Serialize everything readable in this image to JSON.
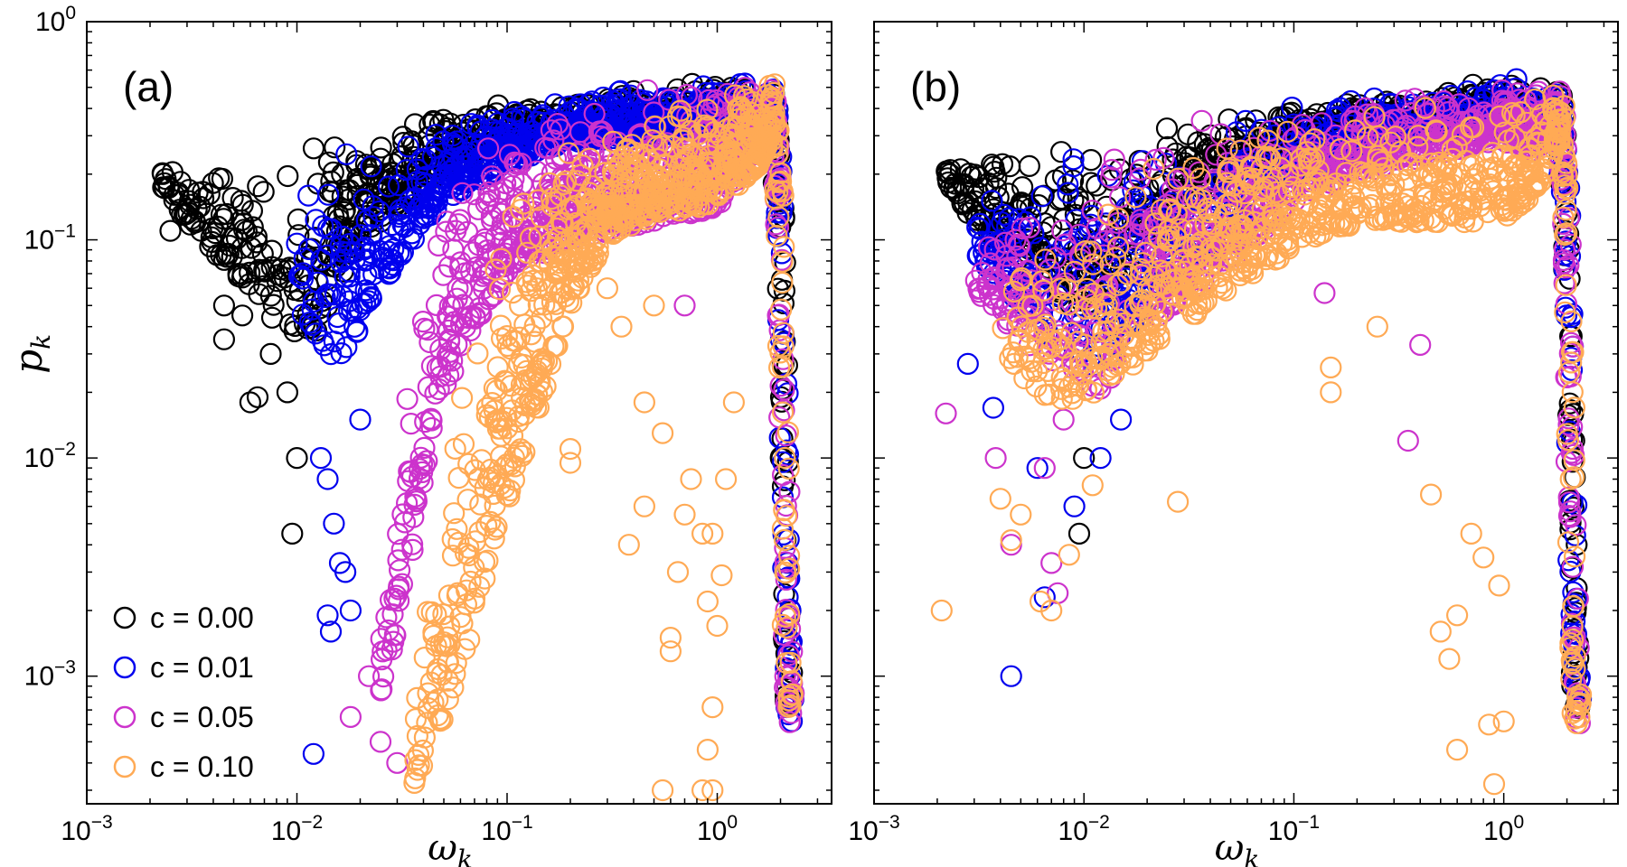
{
  "chart_data": [
    {
      "type": "scatter",
      "panel_label": "(a)",
      "xlabel": "ω",
      "xlabel_sub": "k",
      "ylabel": "p",
      "ylabel_sub": "k",
      "xscale": "log",
      "yscale": "log",
      "xlim": [
        0.001,
        3.5
      ],
      "ylim": [
        0.00026,
        1
      ],
      "x_ticks": [
        {
          "value": 0.001,
          "base": "10",
          "exp": "−3"
        },
        {
          "value": 0.01,
          "base": "10",
          "exp": "−2"
        },
        {
          "value": 0.1,
          "base": "10",
          "exp": "−1"
        },
        {
          "value": 1,
          "base": "10",
          "exp": "0"
        }
      ],
      "y_ticks": [
        {
          "value": 0.001,
          "base": "10",
          "exp": "−3"
        },
        {
          "value": 0.01,
          "base": "10",
          "exp": "−2"
        },
        {
          "value": 0.1,
          "base": "10",
          "exp": "−1"
        },
        {
          "value": 1,
          "base": "10",
          "exp": "0"
        }
      ],
      "show_y_tick_labels": true,
      "legend": {
        "position": "bottom-left",
        "entries": [
          "c = 0.00",
          "c = 0.01",
          "c = 0.05",
          "c = 0.10"
        ]
      },
      "series": [
        {
          "name": "c = 0.00",
          "color": "#000000",
          "band": {
            "x": [
              0.0022,
              0.003,
              0.005,
              0.008,
              0.012,
              0.02,
              0.05,
              0.1,
              0.2,
              0.5,
              1.0,
              1.3,
              1.6,
              1.8
            ],
            "upper": [
              0.22,
              0.24,
              0.26,
              0.28,
              0.31,
              0.34,
              0.39,
              0.42,
              0.46,
              0.5,
              0.56,
              0.57,
              0.52,
              0.45
            ],
            "lower": [
              0.18,
              0.12,
              0.07,
              0.04,
              0.035,
              0.1,
              0.2,
              0.28,
              0.3,
              0.32,
              0.35,
              0.3,
              0.3,
              0.3
            ]
          },
          "outliers": [
            [
              0.0023,
              0.2
            ],
            [
              0.0025,
              0.11
            ],
            [
              0.0035,
              0.11
            ],
            [
              0.0045,
              0.05
            ],
            [
              0.0045,
              0.035
            ],
            [
              0.006,
              0.018
            ],
            [
              0.0065,
              0.019
            ],
            [
              0.009,
              0.02
            ],
            [
              0.01,
              0.01
            ],
            [
              0.0095,
              0.0045
            ],
            [
              0.0075,
              0.03
            ],
            [
              0.0055,
              0.045
            ]
          ]
        },
        {
          "name": "c = 0.01",
          "color": "#0000ee",
          "band": {
            "x": [
              0.01,
              0.015,
              0.02,
              0.03,
              0.05,
              0.1,
              0.2,
              0.5,
              1.0,
              1.3,
              1.6,
              1.8
            ],
            "upper": [
              0.2,
              0.24,
              0.28,
              0.32,
              0.37,
              0.42,
              0.47,
              0.52,
              0.56,
              0.57,
              0.52,
              0.45
            ],
            "lower": [
              0.05,
              0.025,
              0.04,
              0.08,
              0.15,
              0.22,
              0.28,
              0.3,
              0.32,
              0.3,
              0.3,
              0.3
            ]
          },
          "outliers": [
            [
              0.013,
              0.01
            ],
            [
              0.014,
              0.008
            ],
            [
              0.015,
              0.005
            ],
            [
              0.016,
              0.0033
            ],
            [
              0.017,
              0.003
            ],
            [
              0.014,
              0.0019
            ],
            [
              0.0145,
              0.0016
            ],
            [
              0.012,
              0.00044
            ],
            [
              0.018,
              0.002
            ],
            [
              0.02,
              0.015
            ]
          ]
        },
        {
          "name": "c = 0.05",
          "color": "#cc33cc",
          "band": {
            "x": [
              0.025,
              0.03,
              0.035,
              0.04,
              0.05,
              0.07,
              0.1,
              0.2,
              0.5,
              1.0,
              1.3,
              1.6,
              1.8
            ],
            "upper": [
              0.0022,
              0.008,
              0.04,
              0.12,
              0.2,
              0.27,
              0.33,
              0.41,
              0.5,
              0.55,
              0.56,
              0.52,
              0.45
            ],
            "lower": [
              0.0008,
              0.0015,
              0.003,
              0.008,
              0.02,
              0.04,
              0.07,
              0.1,
              0.12,
              0.14,
              0.2,
              0.25,
              0.3
            ]
          },
          "outliers": [
            [
              0.018,
              0.00065
            ],
            [
              0.022,
              0.001
            ],
            [
              0.025,
              0.0005
            ],
            [
              0.03,
              0.0004
            ],
            [
              0.4,
              0.22
            ],
            [
              0.7,
              0.05
            ]
          ]
        },
        {
          "name": "c = 0.10",
          "color": "#ffaa55",
          "band": {
            "x": [
              0.035,
              0.04,
              0.05,
              0.06,
              0.08,
              0.1,
              0.15,
              0.2,
              0.3,
              0.5,
              0.8,
              1.0,
              1.3,
              1.6,
              1.8
            ],
            "upper": [
              0.0008,
              0.002,
              0.01,
              0.03,
              0.1,
              0.18,
              0.25,
              0.3,
              0.36,
              0.42,
              0.47,
              0.5,
              0.52,
              0.5,
              0.45
            ],
            "lower": [
              0.0003,
              0.0004,
              0.0006,
              0.001,
              0.003,
              0.006,
              0.02,
              0.05,
              0.1,
              0.13,
              0.14,
              0.15,
              0.18,
              0.22,
              0.3
            ]
          },
          "outliers": [
            [
              0.2,
              0.011
            ],
            [
              0.2,
              0.0095
            ],
            [
              0.3,
              0.06
            ],
            [
              0.25,
              0.075
            ],
            [
              0.35,
              0.04
            ],
            [
              0.45,
              0.018
            ],
            [
              0.5,
              0.05
            ],
            [
              0.55,
              0.013
            ],
            [
              0.6,
              0.0015
            ],
            [
              0.65,
              0.003
            ],
            [
              0.7,
              0.0055
            ],
            [
              0.75,
              0.008
            ],
            [
              0.85,
              0.0045
            ],
            [
              0.9,
              0.0022
            ],
            [
              0.95,
              0.0045
            ],
            [
              0.9,
              0.00046
            ],
            [
              0.95,
              0.00072
            ],
            [
              1.0,
              0.0017
            ],
            [
              1.05,
              0.0029
            ],
            [
              0.6,
              0.0013
            ],
            [
              0.85,
              0.0003
            ],
            [
              0.95,
              0.0003
            ],
            [
              0.55,
              0.0003
            ],
            [
              1.1,
              0.008
            ],
            [
              1.2,
              0.018
            ],
            [
              0.38,
              0.004
            ],
            [
              0.45,
              0.006
            ]
          ]
        }
      ],
      "tail": {
        "x": [
          1.8,
          1.9,
          2.0,
          2.05,
          2.1,
          2.15,
          2.2,
          2.25
        ],
        "y": [
          0.45,
          0.3,
          0.12,
          0.03,
          0.008,
          0.002,
          0.0009,
          0.00068
        ]
      }
    },
    {
      "type": "scatter",
      "panel_label": "(b)",
      "xlabel": "ω",
      "xlabel_sub": "k",
      "ylabel": "",
      "ylabel_sub": "",
      "xscale": "log",
      "yscale": "log",
      "xlim": [
        0.001,
        3.5
      ],
      "ylim": [
        0.00026,
        1
      ],
      "x_ticks": [
        {
          "value": 0.001,
          "base": "10",
          "exp": "−3"
        },
        {
          "value": 0.01,
          "base": "10",
          "exp": "−2"
        },
        {
          "value": 0.1,
          "base": "10",
          "exp": "−1"
        },
        {
          "value": 1,
          "base": "10",
          "exp": "0"
        }
      ],
      "y_ticks": [
        {
          "value": 0.001,
          "base": "10",
          "exp": "−3"
        },
        {
          "value": 0.01,
          "base": "10",
          "exp": "−2"
        },
        {
          "value": 0.1,
          "base": "10",
          "exp": "−1"
        },
        {
          "value": 1,
          "base": "10",
          "exp": "0"
        }
      ],
      "show_y_tick_labels": false,
      "series": [
        {
          "name": "c = 0.00",
          "color": "#000000",
          "band": {
            "x": [
              0.0022,
              0.003,
              0.005,
              0.008,
              0.012,
              0.02,
              0.05,
              0.1,
              0.2,
              0.5,
              1.0,
              1.3,
              1.6,
              1.8
            ],
            "upper": [
              0.22,
              0.24,
              0.26,
              0.28,
              0.31,
              0.34,
              0.39,
              0.42,
              0.46,
              0.5,
              0.56,
              0.57,
              0.52,
              0.45
            ],
            "lower": [
              0.18,
              0.12,
              0.08,
              0.05,
              0.05,
              0.1,
              0.2,
              0.28,
              0.3,
              0.32,
              0.35,
              0.3,
              0.3,
              0.3
            ]
          },
          "outliers": [
            [
              0.0023,
              0.2
            ],
            [
              0.0035,
              0.11
            ],
            [
              0.0095,
              0.0045
            ],
            [
              0.01,
              0.01
            ]
          ]
        },
        {
          "name": "c = 0.01",
          "color": "#0000ee",
          "band": {
            "x": [
              0.003,
              0.005,
              0.008,
              0.012,
              0.02,
              0.05,
              0.1,
              0.2,
              0.5,
              1.0,
              1.3,
              1.6,
              1.8
            ],
            "upper": [
              0.15,
              0.2,
              0.25,
              0.3,
              0.34,
              0.39,
              0.42,
              0.46,
              0.5,
              0.56,
              0.57,
              0.52,
              0.45
            ],
            "lower": [
              0.08,
              0.05,
              0.03,
              0.025,
              0.05,
              0.1,
              0.2,
              0.25,
              0.3,
              0.33,
              0.3,
              0.3,
              0.3
            ]
          },
          "outliers": [
            [
              0.0028,
              0.027
            ],
            [
              0.0037,
              0.017
            ],
            [
              0.0045,
              0.001
            ],
            [
              0.006,
              0.009
            ],
            [
              0.0065,
              0.0023
            ],
            [
              0.009,
              0.006
            ],
            [
              0.012,
              0.01
            ],
            [
              0.015,
              0.015
            ]
          ]
        },
        {
          "name": "c = 0.05",
          "color": "#cc33cc",
          "band": {
            "x": [
              0.003,
              0.005,
              0.008,
              0.012,
              0.02,
              0.05,
              0.1,
              0.2,
              0.5,
              1.0,
              1.3,
              1.6,
              1.8
            ],
            "upper": [
              0.1,
              0.17,
              0.22,
              0.28,
              0.32,
              0.38,
              0.41,
              0.45,
              0.49,
              0.55,
              0.56,
              0.52,
              0.45
            ],
            "lower": [
              0.06,
              0.035,
              0.025,
              0.02,
              0.04,
              0.08,
              0.15,
              0.2,
              0.25,
              0.28,
              0.25,
              0.28,
              0.3
            ]
          },
          "outliers": [
            [
              0.0022,
              0.016
            ],
            [
              0.0032,
              0.06
            ],
            [
              0.0038,
              0.01
            ],
            [
              0.0045,
              0.004
            ],
            [
              0.0065,
              0.009
            ],
            [
              0.007,
              0.0033
            ],
            [
              0.0075,
              0.0024
            ],
            [
              0.008,
              0.015
            ],
            [
              0.14,
              0.057
            ],
            [
              0.35,
              0.012
            ],
            [
              0.4,
              0.033
            ]
          ]
        },
        {
          "name": "c = 0.10",
          "color": "#ffaa55",
          "band": {
            "x": [
              0.004,
              0.006,
              0.008,
              0.012,
              0.02,
              0.05,
              0.1,
              0.2,
              0.5,
              1.0,
              1.3,
              1.6,
              1.8
            ],
            "upper": [
              0.07,
              0.12,
              0.16,
              0.2,
              0.26,
              0.32,
              0.36,
              0.4,
              0.44,
              0.48,
              0.5,
              0.48,
              0.44
            ],
            "lower": [
              0.03,
              0.02,
              0.018,
              0.02,
              0.03,
              0.06,
              0.09,
              0.12,
              0.12,
              0.12,
              0.15,
              0.2,
              0.28
            ]
          },
          "outliers": [
            [
              0.0021,
              0.002
            ],
            [
              0.004,
              0.0065
            ],
            [
              0.0045,
              0.0042
            ],
            [
              0.005,
              0.0055
            ],
            [
              0.0062,
              0.0022
            ],
            [
              0.007,
              0.002
            ],
            [
              0.0085,
              0.0036
            ],
            [
              0.011,
              0.0075
            ],
            [
              0.028,
              0.0063
            ],
            [
              0.15,
              0.02
            ],
            [
              0.15,
              0.026
            ],
            [
              0.25,
              0.04
            ],
            [
              0.45,
              0.0068
            ],
            [
              0.5,
              0.0016
            ],
            [
              0.55,
              0.0012
            ],
            [
              0.6,
              0.0019
            ],
            [
              0.7,
              0.0045
            ],
            [
              0.8,
              0.0035
            ],
            [
              0.85,
              0.0006
            ],
            [
              0.9,
              0.00032
            ],
            [
              0.95,
              0.0026
            ],
            [
              0.6,
              0.00046
            ],
            [
              1.0,
              0.00062
            ]
          ]
        }
      ],
      "tail": {
        "x": [
          1.8,
          1.9,
          2.0,
          2.05,
          2.1,
          2.15,
          2.2,
          2.25
        ],
        "y": [
          0.45,
          0.3,
          0.12,
          0.03,
          0.008,
          0.002,
          0.0009,
          0.00068
        ]
      }
    }
  ]
}
